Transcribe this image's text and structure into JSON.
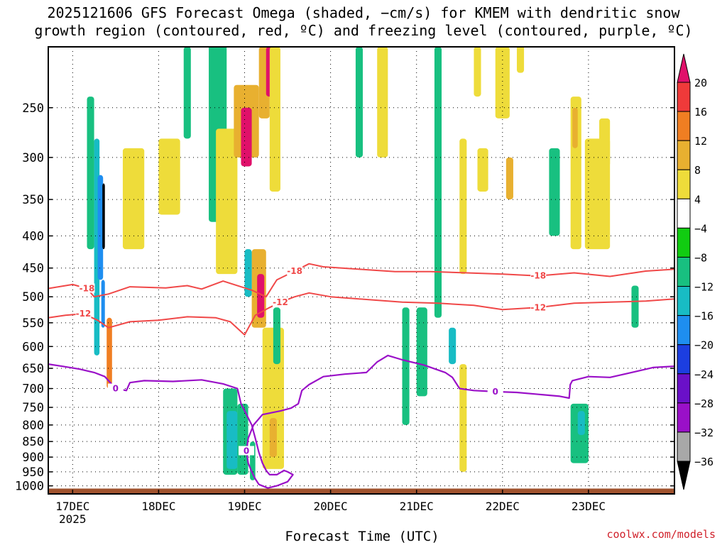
{
  "title_line1": "2025121606 GFS Forecast Omega (shaded, −cm/s) for KMEM with dendritic snow",
  "title_line2": "growth region (contoured, red, ºC) and freezing level (contoured, purple, ºC)",
  "credit": "coolwx.com/models",
  "chart_data": {
    "type": "heatmap",
    "title": "2025121606 GFS Forecast Omega (shaded, −cm/s) for KMEM with dendritic snow growth region (contoured, red, ºC) and freezing level (contoured, purple, ºC)",
    "xlabel": "Forecast Time (UTC)",
    "ylabel": "",
    "x_range_hours_from_17dec00z": [
      -6.8,
      168.0
    ],
    "x_ticks": [
      {
        "label": "17DEC",
        "sub": "2025",
        "hour": 0
      },
      {
        "label": "18DEC",
        "sub": "",
        "hour": 24
      },
      {
        "label": "19DEC",
        "sub": "",
        "hour": 48
      },
      {
        "label": "20DEC",
        "sub": "",
        "hour": 72
      },
      {
        "label": "21DEC",
        "sub": "",
        "hour": 96
      },
      {
        "label": "22DEC",
        "sub": "",
        "hour": 120
      },
      {
        "label": "23DEC",
        "sub": "",
        "hour": 144
      }
    ],
    "y_axis": {
      "scale": "log-pressure",
      "range_hpa": [
        1030,
        200
      ],
      "reversed": true
    },
    "y_ticks": [
      250,
      300,
      350,
      400,
      450,
      500,
      550,
      600,
      650,
      700,
      750,
      800,
      850,
      900,
      950,
      1000
    ],
    "colorbar": {
      "labels": [
        "20",
        "16",
        "12",
        "8",
        "4",
        "−4",
        "−8",
        "−12",
        "−16",
        "−20",
        "−24",
        "−28",
        "−32",
        "−36"
      ],
      "colors": {
        "gt20": "#e0106a",
        "16_20": "#ef3a3a",
        "12_16": "#f07e22",
        "8_12": "#e8b030",
        "4_8": "#eedc3a",
        "m4_4": "#ffffff",
        "m8_m4": "#11cc11",
        "m12_m8": "#18c080",
        "m16_m12": "#18bcc4",
        "m20_m16": "#1e8ef0",
        "m24_m20": "#1c3ee0",
        "m28_m24": "#6a10c8",
        "m32_m28": "#9a10c8",
        "m36_m32": "#a8a8a8",
        "lt36": "#000000"
      }
    },
    "omega_features": [
      {
        "t0": 6,
        "t1": 7.5,
        "p0": 280,
        "p1": 620,
        "v": -12
      },
      {
        "t0": 7,
        "t1": 8.5,
        "p0": 320,
        "p1": 470,
        "v": -16
      },
      {
        "t0": 8.3,
        "t1": 9.0,
        "p0": 330,
        "p1": 420,
        "v": -36
      },
      {
        "t0": 8,
        "t1": 9,
        "p0": 470,
        "p1": 560,
        "v": -16
      },
      {
        "t0": 9.5,
        "t1": 11,
        "p0": 540,
        "p1": 700,
        "v": 14
      },
      {
        "t0": 4,
        "t1": 6,
        "p0": 240,
        "p1": 420,
        "v": -8
      },
      {
        "t0": 14,
        "t1": 20,
        "p0": 290,
        "p1": 420,
        "v": 5
      },
      {
        "t0": 24,
        "t1": 30,
        "p0": 280,
        "p1": 370,
        "v": 5
      },
      {
        "t0": 31,
        "t1": 33,
        "p0": 200,
        "p1": 280,
        "v": -8
      },
      {
        "t0": 38,
        "t1": 43,
        "p0": 180,
        "p1": 380,
        "v": -8
      },
      {
        "t0": 40,
        "t1": 46,
        "p0": 270,
        "p1": 460,
        "v": 5
      },
      {
        "t0": 45,
        "t1": 52,
        "p0": 230,
        "p1": 300,
        "v": 10
      },
      {
        "t0": 47,
        "t1": 50,
        "p0": 250,
        "p1": 310,
        "v": 22
      },
      {
        "t0": 52,
        "t1": 55,
        "p0": 200,
        "p1": 260,
        "v": 10
      },
      {
        "t0": 54,
        "t1": 57,
        "p0": 200,
        "p1": 240,
        "v": 22
      },
      {
        "t0": 55,
        "t1": 58,
        "p0": 200,
        "p1": 340,
        "v": 5
      },
      {
        "t0": 50,
        "t1": 54,
        "p0": 420,
        "p1": 560,
        "v": 10
      },
      {
        "t0": 51.5,
        "t1": 53.5,
        "p0": 460,
        "p1": 540,
        "v": 22
      },
      {
        "t0": 48,
        "t1": 50,
        "p0": 420,
        "p1": 500,
        "v": -12
      },
      {
        "t0": 42,
        "t1": 46,
        "p0": 700,
        "p1": 960,
        "v": -8
      },
      {
        "t0": 43,
        "t1": 46,
        "p0": 760,
        "p1": 940,
        "v": -12
      },
      {
        "t0": 46,
        "t1": 49,
        "p0": 740,
        "p1": 960,
        "v": -8
      },
      {
        "t0": 49.5,
        "t1": 51,
        "p0": 850,
        "p1": 980,
        "v": -8
      },
      {
        "t0": 53,
        "t1": 59,
        "p0": 560,
        "p1": 940,
        "v": 5
      },
      {
        "t0": 55,
        "t1": 57,
        "p0": 780,
        "p1": 900,
        "v": 10
      },
      {
        "t0": 56,
        "t1": 58,
        "p0": 520,
        "p1": 640,
        "v": -8
      },
      {
        "t0": 79,
        "t1": 81,
        "p0": 200,
        "p1": 300,
        "v": -8
      },
      {
        "t0": 85,
        "t1": 88,
        "p0": 200,
        "p1": 300,
        "v": 5
      },
      {
        "t0": 92,
        "t1": 94,
        "p0": 520,
        "p1": 800,
        "v": -8
      },
      {
        "t0": 96,
        "t1": 99,
        "p0": 520,
        "p1": 720,
        "v": -8
      },
      {
        "t0": 101,
        "t1": 103,
        "p0": 200,
        "p1": 540,
        "v": -8
      },
      {
        "t0": 105,
        "t1": 107,
        "p0": 560,
        "p1": 640,
        "v": -12
      },
      {
        "t0": 108,
        "t1": 110,
        "p0": 280,
        "p1": 460,
        "v": 5
      },
      {
        "t0": 108,
        "t1": 110,
        "p0": 640,
        "p1": 950,
        "v": 5
      },
      {
        "t0": 112,
        "t1": 114,
        "p0": 200,
        "p1": 240,
        "v": 5
      },
      {
        "t0": 113,
        "t1": 116,
        "p0": 290,
        "p1": 340,
        "v": 5
      },
      {
        "t0": 118,
        "t1": 122,
        "p0": 200,
        "p1": 260,
        "v": 5
      },
      {
        "t0": 121,
        "t1": 123,
        "p0": 300,
        "p1": 350,
        "v": 8
      },
      {
        "t0": 124,
        "t1": 126,
        "p0": 180,
        "p1": 220,
        "v": 5
      },
      {
        "t0": 133,
        "t1": 136,
        "p0": 290,
        "p1": 400,
        "v": -8
      },
      {
        "t0": 139,
        "t1": 142,
        "p0": 240,
        "p1": 420,
        "v": 5
      },
      {
        "t0": 139.5,
        "t1": 141,
        "p0": 250,
        "p1": 290,
        "v": 8
      },
      {
        "t0": 143,
        "t1": 150,
        "p0": 280,
        "p1": 420,
        "v": 5
      },
      {
        "t0": 147,
        "t1": 150,
        "p0": 260,
        "p1": 310,
        "v": 5
      },
      {
        "t0": 139,
        "t1": 144,
        "p0": 740,
        "p1": 920,
        "v": -8
      },
      {
        "t0": 141,
        "t1": 143,
        "p0": 760,
        "p1": 830,
        "v": -12
      },
      {
        "t0": 156,
        "t1": 158,
        "p0": 480,
        "p1": 560,
        "v": -8
      }
    ],
    "dendritic_contours": [
      {
        "label": "-18",
        "series": [
          [
            -6.8,
            485
          ],
          [
            0,
            478
          ],
          [
            4,
            485
          ],
          [
            6,
            500
          ],
          [
            10,
            495
          ],
          [
            16,
            482
          ],
          [
            26,
            484
          ],
          [
            32,
            480
          ],
          [
            36,
            486
          ],
          [
            42,
            472
          ],
          [
            50,
            488
          ],
          [
            54,
            500
          ],
          [
            57,
            470
          ],
          [
            62,
            455
          ],
          [
            66,
            443
          ],
          [
            70,
            448
          ],
          [
            80,
            452
          ],
          [
            90,
            456
          ],
          [
            100,
            456
          ],
          [
            110,
            458
          ],
          [
            120,
            460
          ],
          [
            130,
            463
          ],
          [
            140,
            458
          ],
          [
            150,
            464
          ],
          [
            160,
            455
          ],
          [
            168,
            452
          ]
        ]
      },
      {
        "label": "-12",
        "series": [
          [
            -6.8,
            540
          ],
          [
            -2,
            535
          ],
          [
            3,
            532
          ],
          [
            7,
            545
          ],
          [
            10,
            560
          ],
          [
            16,
            548
          ],
          [
            24,
            545
          ],
          [
            32,
            538
          ],
          [
            40,
            540
          ],
          [
            44,
            548
          ],
          [
            48,
            575
          ],
          [
            51,
            535
          ],
          [
            55,
            520
          ],
          [
            58,
            510
          ],
          [
            62,
            500
          ],
          [
            66,
            493
          ],
          [
            72,
            500
          ],
          [
            82,
            505
          ],
          [
            92,
            510
          ],
          [
            102,
            512
          ],
          [
            112,
            516
          ],
          [
            120,
            524
          ],
          [
            130,
            520
          ],
          [
            140,
            512
          ],
          [
            150,
            510
          ],
          [
            160,
            508
          ],
          [
            168,
            504
          ]
        ]
      }
    ],
    "freezing_level_contour": {
      "label": "0",
      "series": [
        [
          -6.8,
          640
        ],
        [
          -3,
          645
        ],
        [
          2,
          652
        ],
        [
          6,
          660
        ],
        [
          9,
          670
        ],
        [
          12,
          700
        ],
        [
          15,
          705
        ],
        [
          16,
          685
        ],
        [
          20,
          680
        ],
        [
          28,
          682
        ],
        [
          36,
          678
        ],
        [
          42,
          688
        ],
        [
          46,
          700
        ],
        [
          47,
          740
        ],
        [
          50,
          800
        ],
        [
          51,
          840
        ],
        [
          52,
          885
        ],
        [
          53,
          920
        ],
        [
          54,
          945
        ],
        [
          55,
          960
        ],
        [
          57,
          960
        ],
        [
          59,
          945
        ],
        [
          60,
          950
        ],
        [
          61.5,
          960
        ],
        [
          60,
          985
        ],
        [
          57,
          1000
        ],
        [
          54.5,
          1008
        ],
        [
          52,
          995
        ],
        [
          51,
          975
        ],
        [
          50,
          950
        ],
        [
          49,
          920
        ],
        [
          48.5,
          880
        ],
        [
          49,
          840
        ],
        [
          50.5,
          800
        ],
        [
          53,
          770
        ],
        [
          58,
          760
        ],
        [
          61,
          752
        ],
        [
          63,
          740
        ],
        [
          64,
          705
        ],
        [
          66,
          690
        ],
        [
          70,
          670
        ],
        [
          76,
          664
        ],
        [
          82,
          660
        ],
        [
          85,
          635
        ],
        [
          88,
          620
        ],
        [
          92,
          630
        ],
        [
          98,
          642
        ],
        [
          104,
          660
        ],
        [
          106,
          672
        ],
        [
          108,
          700
        ],
        [
          112,
          705
        ],
        [
          118,
          708
        ],
        [
          124,
          710
        ],
        [
          130,
          715
        ],
        [
          136,
          720
        ],
        [
          138.6,
          725
        ],
        [
          138.9,
          690
        ],
        [
          139.5,
          680
        ],
        [
          144,
          670
        ],
        [
          150,
          672
        ],
        [
          156,
          660
        ],
        [
          162,
          648
        ],
        [
          168,
          645
        ]
      ]
    },
    "ground_band": {
      "p_top": 1010,
      "color": "#a0522d"
    }
  }
}
